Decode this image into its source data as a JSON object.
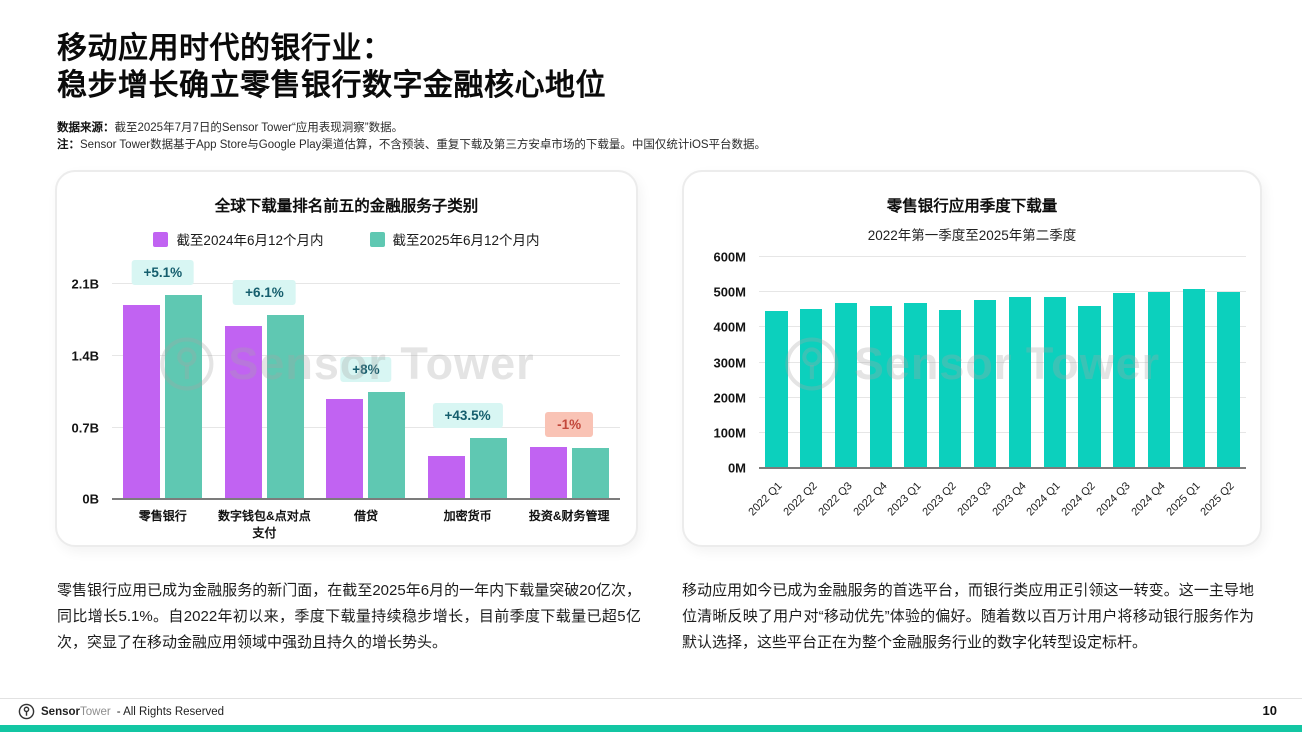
{
  "page": {
    "title_line1": "移动应用时代的银行业：",
    "title_line2": "稳步增长确立零售银行数字金融核心地位",
    "source_label": "数据来源：",
    "source_text": "截至2025年7月7日的Sensor Tower“应用表现洞察”数据。",
    "note_label": "注：",
    "note_text": "Sensor Tower数据基于App Store与Google Play渠道估算，不含预装、重复下载及第三方安卓市场的下载量。中国仅统计iOS平台数据。",
    "page_number": "10"
  },
  "watermark_text": "Sensor Tower",
  "paragraphs": {
    "left": "零售银行应用已成为金融服务的新门面，在截至2025年6月的一年内下载量突破20亿次，同比增长5.1%。自2022年初以来，季度下载量持续稳步增长，目前季度下载量已超5亿次，突显了在移动金融应用领域中强劲且持久的增长势头。",
    "right": "移动应用如今已成为金融服务的首选平台，而银行类应用正引领这一转变。这一主导地位清晰反映了用户对“移动优先”体验的偏好。随着数以百万计用户将移动银行服务作为默认选择，这些平台正在为整个金融服务行业的数字化转型设定标杆。"
  },
  "footer": {
    "brand_bold": "Sensor",
    "brand_light": "Tower",
    "rights": "- All Rights Reserved"
  },
  "colors": {
    "series_2024": "#c163f2",
    "series_2025": "#5fc8b2",
    "quarterly_bar": "#0cd0bd",
    "badge_positive_bg": "#d8f6f3",
    "badge_positive_text": "#155e6d",
    "badge_negative_bg": "#f9c3b5",
    "badge_negative_text": "#c2473a",
    "bottom_bar": "#13c6a3"
  },
  "chart_data": [
    {
      "type": "bar",
      "title": "全球下载量排名前五的金融服务子类别",
      "categories": [
        "零售银行",
        "数字钱包&点对点支付",
        "借贷",
        "加密货币",
        "投资&财务管理"
      ],
      "series": [
        {
          "name": "截至2024年6月12个月内",
          "color": "#c163f2",
          "values": [
            1.9,
            1.69,
            0.98,
            0.42,
            0.51
          ]
        },
        {
          "name": "截至2025年6月12个月内",
          "color": "#5fc8b2",
          "values": [
            2.0,
            1.8,
            1.05,
            0.6,
            0.5
          ]
        }
      ],
      "badges": [
        {
          "label": "+5.1%",
          "type": "positive"
        },
        {
          "label": "+6.1%",
          "type": "positive"
        },
        {
          "label": "+8%",
          "type": "positive"
        },
        {
          "label": "+43.5%",
          "type": "positive"
        },
        {
          "label": "-1%",
          "type": "negative"
        }
      ],
      "unit": "B",
      "ylim": [
        0,
        2.32
      ],
      "yticks": [
        {
          "value": 0,
          "label": "0B"
        },
        {
          "value": 0.7,
          "label": "0.7B"
        },
        {
          "value": 1.4,
          "label": "1.4B"
        },
        {
          "value": 2.1,
          "label": "2.1B"
        }
      ],
      "legend_position": "top",
      "grid": true
    },
    {
      "type": "bar",
      "title": "零售银行应用季度下载量",
      "subtitle": "2022年第一季度至2025年第二季度",
      "categories": [
        "2022 Q1",
        "2022 Q2",
        "2022 Q3",
        "2022 Q4",
        "2023 Q1",
        "2023 Q2",
        "2023 Q3",
        "2023 Q4",
        "2024 Q1",
        "2024 Q2",
        "2024 Q3",
        "2024 Q4",
        "2025 Q1",
        "2025 Q2"
      ],
      "values": [
        446,
        453,
        468,
        462,
        469,
        450,
        478,
        487,
        487,
        462,
        497,
        501,
        509,
        501
      ],
      "bar_color": "#0cd0bd",
      "unit": "M",
      "ylim": [
        0,
        640
      ],
      "yticks": [
        {
          "value": 0,
          "label": "0M"
        },
        {
          "value": 100,
          "label": "100M"
        },
        {
          "value": 200,
          "label": "200M"
        },
        {
          "value": 300,
          "label": "300M"
        },
        {
          "value": 400,
          "label": "400M"
        },
        {
          "value": 500,
          "label": "500M"
        },
        {
          "value": 600,
          "label": "600M"
        }
      ],
      "grid": true
    }
  ]
}
